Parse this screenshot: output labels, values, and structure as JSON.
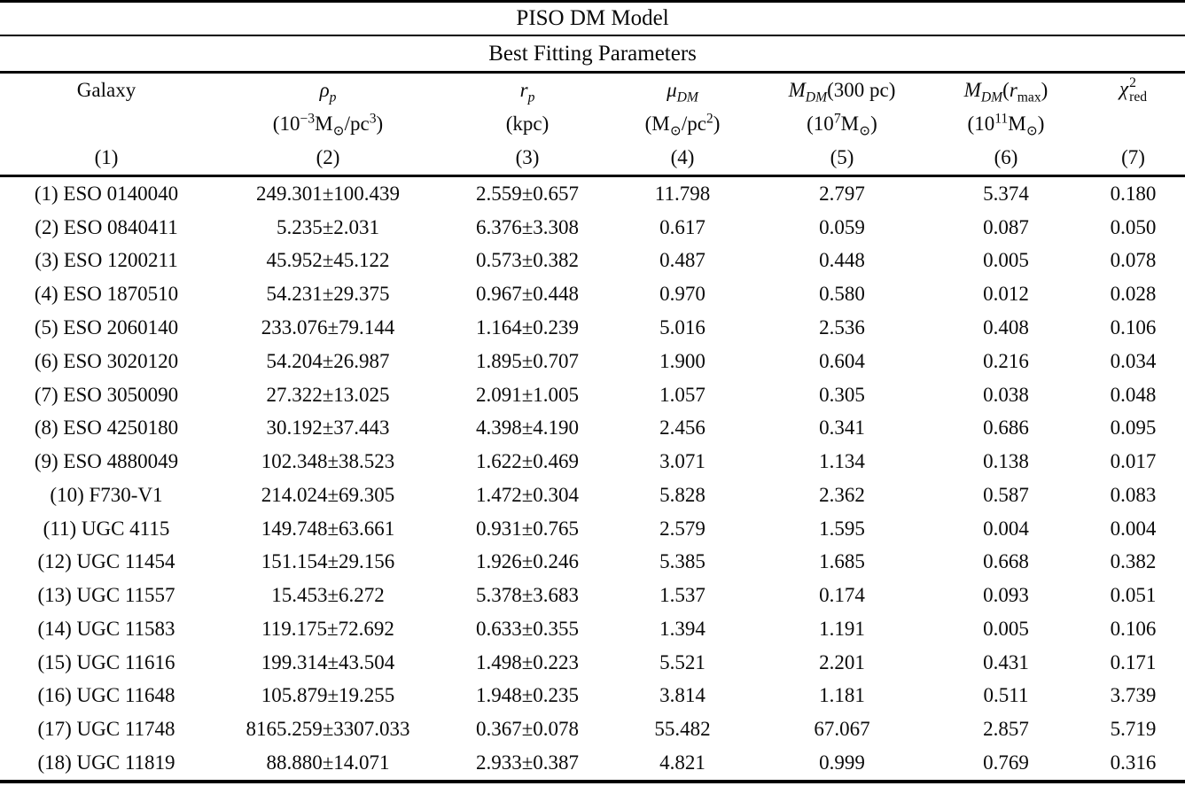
{
  "table": {
    "title": "PISO DM Model",
    "subtitle": "Best Fitting Parameters",
    "columns": [
      {
        "name": "galaxy",
        "symbol_html": "Galaxy",
        "unit_html": "",
        "number": "(1)"
      },
      {
        "name": "rho_p",
        "symbol_html": "<i>ρ<sub>p</sub></i>",
        "unit_html": "(10<sup>−3</sup>M<sub>⊙</sub>/pc<sup>3</sup>)",
        "number": "(2)"
      },
      {
        "name": "r_p",
        "symbol_html": "<i>r<sub>p</sub></i>",
        "unit_html": "(kpc)",
        "number": "(3)"
      },
      {
        "name": "mu_DM",
        "symbol_html": "<i>μ<sub>DM</sub></i>",
        "unit_html": "(M<sub>⊙</sub>/pc<sup>2</sup>)",
        "number": "(4)"
      },
      {
        "name": "M_DM_300pc",
        "symbol_html": "<i>M<sub>DM</sub></i>(300 pc)",
        "unit_html": "(10<sup>7</sup>M<sub>⊙</sub>)",
        "number": "(5)"
      },
      {
        "name": "M_DM_rmax",
        "symbol_html": "<i>M<sub>DM</sub></i>(<i>r</i><sub>max</sub>)",
        "unit_html": "(10<sup>11</sup>M<sub>⊙</sub>)",
        "number": "(6)"
      },
      {
        "name": "chi2_red",
        "symbol_html": "<i>χ</i><span class=\"chi-stack\"><span class=\"top\">2</span><span class=\"bot\">red</span></span>",
        "unit_html": "",
        "number": "(7)"
      }
    ],
    "rows": [
      [
        "(1) ESO 0140040",
        "249.301±100.439",
        "2.559±0.657",
        "11.798",
        "2.797",
        "5.374",
        "0.180"
      ],
      [
        "(2) ESO 0840411",
        "5.235±2.031",
        "6.376±3.308",
        "0.617",
        "0.059",
        "0.087",
        "0.050"
      ],
      [
        "(3) ESO 1200211",
        "45.952±45.122",
        "0.573±0.382",
        "0.487",
        "0.448",
        "0.005",
        "0.078"
      ],
      [
        "(4) ESO 1870510",
        "54.231±29.375",
        "0.967±0.448",
        "0.970",
        "0.580",
        "0.012",
        "0.028"
      ],
      [
        "(5) ESO 2060140",
        "233.076±79.144",
        "1.164±0.239",
        "5.016",
        "2.536",
        "0.408",
        "0.106"
      ],
      [
        "(6) ESO 3020120",
        "54.204±26.987",
        "1.895±0.707",
        "1.900",
        "0.604",
        "0.216",
        "0.034"
      ],
      [
        "(7) ESO 3050090",
        "27.322±13.025",
        "2.091±1.005",
        "1.057",
        "0.305",
        "0.038",
        "0.048"
      ],
      [
        "(8) ESO 4250180",
        "30.192±37.443",
        "4.398±4.190",
        "2.456",
        "0.341",
        "0.686",
        "0.095"
      ],
      [
        "(9) ESO 4880049",
        "102.348±38.523",
        "1.622±0.469",
        "3.071",
        "1.134",
        "0.138",
        "0.017"
      ],
      [
        "(10) F730-V1",
        "214.024±69.305",
        "1.472±0.304",
        "5.828",
        "2.362",
        "0.587",
        "0.083"
      ],
      [
        "(11) UGC 4115",
        "149.748±63.661",
        "0.931±0.765",
        "2.579",
        "1.595",
        "0.004",
        "0.004"
      ],
      [
        "(12) UGC 11454",
        "151.154±29.156",
        "1.926±0.246",
        "5.385",
        "1.685",
        "0.668",
        "0.382"
      ],
      [
        "(13) UGC 11557",
        "15.453±6.272",
        "5.378±3.683",
        "1.537",
        "0.174",
        "0.093",
        "0.051"
      ],
      [
        "(14) UGC 11583",
        "119.175±72.692",
        "0.633±0.355",
        "1.394",
        "1.191",
        "0.005",
        "0.106"
      ],
      [
        "(15) UGC 11616",
        "199.314±43.504",
        "1.498±0.223",
        "5.521",
        "2.201",
        "0.431",
        "0.171"
      ],
      [
        "(16) UGC 11648",
        "105.879±19.255",
        "1.948±0.235",
        "3.814",
        "1.181",
        "0.511",
        "3.739"
      ],
      [
        "(17) UGC 11748",
        "8165.259±3307.033",
        "0.367±0.078",
        "55.482",
        "67.067",
        "2.857",
        "5.719"
      ],
      [
        "(18) UGC 11819",
        "88.880±14.071",
        "2.933±0.387",
        "4.821",
        "0.999",
        "0.769",
        "0.316"
      ]
    ]
  }
}
